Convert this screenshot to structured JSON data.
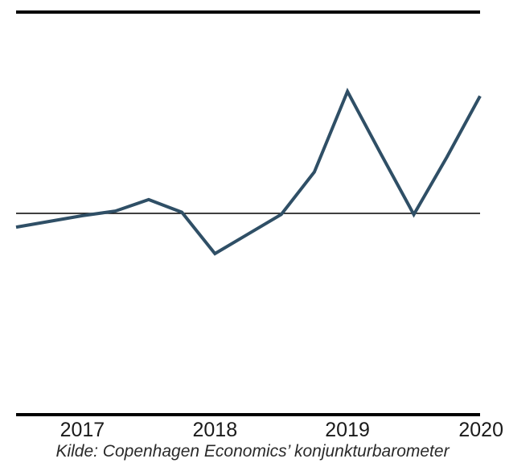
{
  "chart_data": {
    "type": "line",
    "x": [
      2016.5,
      2016.75,
      2017.0,
      2017.25,
      2017.5,
      2017.75,
      2018.0,
      2018.25,
      2018.5,
      2018.75,
      2019.0,
      2019.25,
      2019.5,
      2019.75,
      2020.0
    ],
    "series": [
      {
        "values": [
          -0.6,
          -0.35,
          -0.1,
          0.1,
          0.6,
          0.05,
          -1.75,
          -0.9,
          -0.05,
          1.8,
          5.3,
          2.6,
          -0.05,
          2.45,
          5.1
        ]
      }
    ],
    "xticks": [
      "2017",
      "2018",
      "2019",
      "2020"
    ],
    "xlim": [
      2016.5,
      2020.0
    ],
    "ylim": [
      -8.75,
      8.75
    ],
    "reference_line": 0,
    "grid": false,
    "legend": "none",
    "colors": {
      "series": "#2f4f66",
      "reference_line": "#000000",
      "frame": "#000000"
    },
    "source": "Kilde: Copenhagen Economics’ konjunkturbarometer"
  }
}
